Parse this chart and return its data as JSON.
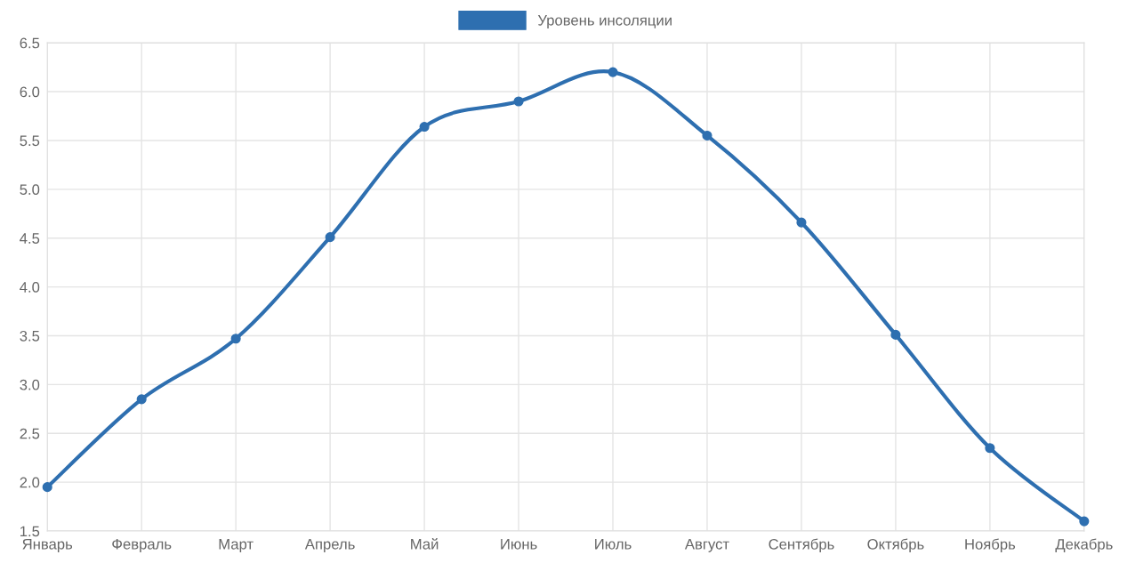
{
  "chart_data": {
    "type": "line",
    "categories": [
      "Январь",
      "Февраль",
      "Март",
      "Апрель",
      "Май",
      "Июнь",
      "Июль",
      "Август",
      "Сентябрь",
      "Октябрь",
      "Ноябрь",
      "Декабрь"
    ],
    "series": [
      {
        "name": "Уровень инсоляции",
        "color": "#2e6fb0",
        "values": [
          1.95,
          2.85,
          3.47,
          4.51,
          5.64,
          5.9,
          6.2,
          5.55,
          4.66,
          3.51,
          2.35,
          1.6
        ]
      }
    ],
    "ylim": [
      1.5,
      6.5
    ],
    "yticks": [
      {
        "value": 1.5,
        "label": "1.5"
      },
      {
        "value": 2.0,
        "label": "2.0"
      },
      {
        "value": 2.5,
        "label": "2.5"
      },
      {
        "value": 3.0,
        "label": "3.0"
      },
      {
        "value": 3.5,
        "label": "3.5"
      },
      {
        "value": 4.0,
        "label": "4.0"
      },
      {
        "value": 4.5,
        "label": "4.5"
      },
      {
        "value": 5.0,
        "label": "5.0"
      },
      {
        "value": 5.5,
        "label": "5.5"
      },
      {
        "value": 6.0,
        "label": "6.0"
      },
      {
        "value": 6.5,
        "label": "6.5"
      }
    ],
    "grid": true,
    "legend": "top",
    "marker": "circle",
    "line_style": "solid"
  }
}
